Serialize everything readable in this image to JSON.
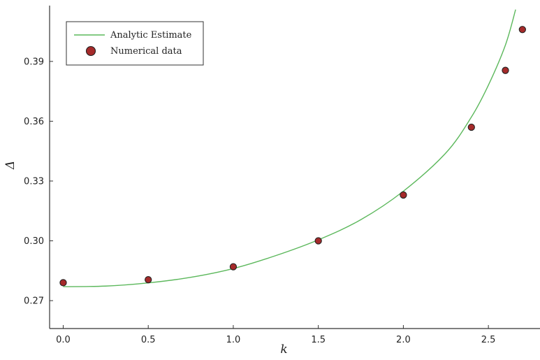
{
  "chart_data": {
    "type": "scatter",
    "xlabel": "k",
    "ylabel": "Δ",
    "xlim": [
      -0.08,
      2.75
    ],
    "ylim": [
      0.256,
      0.418
    ],
    "x_ticks": [
      0.0,
      0.5,
      1.0,
      1.5,
      2.0,
      2.5
    ],
    "x_tick_labels": [
      "0.0",
      "0.5",
      "1.0",
      "1.5",
      "2.0",
      "2.5"
    ],
    "y_ticks": [
      0.27,
      0.3,
      0.33,
      0.36,
      0.39
    ],
    "y_tick_labels": [
      "0.27",
      "0.30",
      "0.33",
      "0.36",
      "0.39"
    ],
    "grid": false,
    "legend_position": "top-left",
    "series": [
      {
        "name": "Analytic Estimate",
        "kind": "line",
        "color": "#5cb85c",
        "x": [
          0.0,
          0.25,
          0.5,
          0.75,
          1.0,
          1.25,
          1.5,
          1.75,
          2.0,
          2.25,
          2.4,
          2.5,
          2.6,
          2.66
        ],
        "y": [
          0.277,
          0.2773,
          0.2789,
          0.2817,
          0.2861,
          0.2926,
          0.3005,
          0.3106,
          0.3249,
          0.3441,
          0.3621,
          0.3781,
          0.3982,
          0.416
        ]
      },
      {
        "name": "Numerical data",
        "kind": "scatter",
        "color": "#a52a2a",
        "edge_color": "#222222",
        "x": [
          0.0,
          0.5,
          1.0,
          1.5,
          2.0,
          2.4,
          2.6,
          2.7
        ],
        "y": [
          0.279,
          0.2805,
          0.287,
          0.3,
          0.323,
          0.357,
          0.3855,
          0.406
        ]
      }
    ]
  }
}
